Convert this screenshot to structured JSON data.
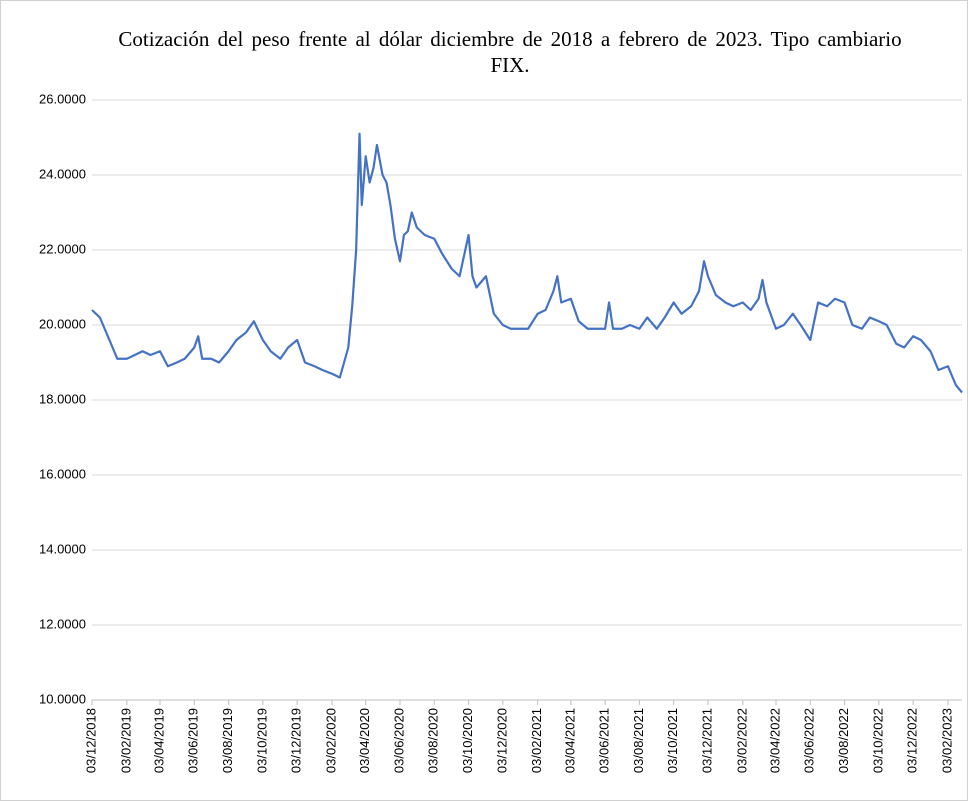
{
  "chart_data": {
    "type": "line",
    "title": "Cotización del peso frente al dólar diciembre de 2018 a febrero de 2023. Tipo cambiario FIX.",
    "color": "#4472c4",
    "grid": true,
    "ylim": [
      10,
      26
    ],
    "yticks": [
      {
        "value": 10,
        "label": "10.0000"
      },
      {
        "value": 12,
        "label": "12.0000"
      },
      {
        "value": 14,
        "label": "14.0000"
      },
      {
        "value": 16,
        "label": "16.0000"
      },
      {
        "value": 18,
        "label": "18.0000"
      },
      {
        "value": 20,
        "label": "20.0000"
      },
      {
        "value": 22,
        "label": "22.0000"
      },
      {
        "value": 24,
        "label": "24.0000"
      },
      {
        "value": 26,
        "label": "26.0000"
      }
    ],
    "xlim": [
      "03/12/2018",
      "28/02/2023"
    ],
    "xticks": [
      "03/12/2018",
      "03/02/2019",
      "03/04/2019",
      "03/06/2019",
      "03/08/2019",
      "03/10/2019",
      "03/12/2019",
      "03/02/2020",
      "03/04/2020",
      "03/06/2020",
      "03/08/2020",
      "03/10/2020",
      "03/12/2020",
      "03/02/2021",
      "03/04/2021",
      "03/06/2021",
      "03/08/2021",
      "03/10/2021",
      "03/12/2021",
      "03/02/2022",
      "03/04/2022",
      "03/06/2022",
      "03/08/2022",
      "03/10/2022",
      "03/12/2022",
      "03/02/2023"
    ],
    "x": [
      "03/12/2018",
      "17/12/2018",
      "03/01/2019",
      "17/01/2019",
      "03/02/2019",
      "17/02/2019",
      "03/03/2019",
      "17/03/2019",
      "03/04/2019",
      "17/04/2019",
      "03/05/2019",
      "17/05/2019",
      "03/06/2019",
      "10/06/2019",
      "17/06/2019",
      "03/07/2019",
      "17/07/2019",
      "03/08/2019",
      "17/08/2019",
      "03/09/2019",
      "17/09/2019",
      "03/10/2019",
      "17/10/2019",
      "03/11/2019",
      "17/11/2019",
      "03/12/2019",
      "17/12/2019",
      "03/01/2020",
      "17/01/2020",
      "03/02/2020",
      "17/02/2020",
      "03/03/2020",
      "10/03/2020",
      "17/03/2020",
      "23/03/2020",
      "27/03/2020",
      "03/04/2020",
      "10/04/2020",
      "17/04/2020",
      "23/04/2020",
      "03/05/2020",
      "10/05/2020",
      "17/05/2020",
      "25/05/2020",
      "03/06/2020",
      "10/06/2020",
      "17/06/2020",
      "24/06/2020",
      "03/07/2020",
      "17/07/2020",
      "03/08/2020",
      "17/08/2020",
      "03/09/2020",
      "17/09/2020",
      "03/10/2020",
      "10/10/2020",
      "17/10/2020",
      "03/11/2020",
      "17/11/2020",
      "03/12/2020",
      "17/12/2020",
      "03/01/2021",
      "17/01/2021",
      "03/02/2021",
      "17/02/2021",
      "03/03/2021",
      "10/03/2021",
      "17/03/2021",
      "03/04/2021",
      "17/04/2021",
      "03/05/2021",
      "17/05/2021",
      "03/06/2021",
      "10/06/2021",
      "17/06/2021",
      "03/07/2021",
      "17/07/2021",
      "03/08/2021",
      "17/08/2021",
      "03/09/2021",
      "17/09/2021",
      "03/10/2021",
      "17/10/2021",
      "03/11/2021",
      "17/11/2021",
      "26/11/2021",
      "03/12/2021",
      "17/12/2021",
      "03/01/2022",
      "17/01/2022",
      "03/02/2022",
      "17/02/2022",
      "03/03/2022",
      "10/03/2022",
      "17/03/2022",
      "03/04/2022",
      "17/04/2022",
      "03/05/2022",
      "17/05/2022",
      "03/06/2022",
      "17/06/2022",
      "03/07/2022",
      "17/07/2022",
      "03/08/2022",
      "17/08/2022",
      "03/09/2022",
      "17/09/2022",
      "03/10/2022",
      "17/10/2022",
      "03/11/2022",
      "17/11/2022",
      "03/12/2022",
      "17/12/2022",
      "03/01/2023",
      "17/01/2023",
      "03/02/2023",
      "17/02/2023",
      "28/02/2023"
    ],
    "values": [
      20.4,
      20.2,
      19.6,
      19.1,
      19.1,
      19.2,
      19.3,
      19.2,
      19.3,
      18.9,
      19.0,
      19.1,
      19.4,
      19.7,
      19.1,
      19.1,
      19.0,
      19.3,
      19.6,
      19.8,
      20.1,
      19.6,
      19.3,
      19.1,
      19.4,
      19.6,
      19.0,
      18.9,
      18.8,
      18.7,
      18.6,
      19.4,
      20.5,
      22.0,
      25.1,
      23.2,
      24.5,
      23.8,
      24.2,
      24.8,
      24.0,
      23.8,
      23.2,
      22.3,
      21.7,
      22.4,
      22.5,
      23.0,
      22.6,
      22.4,
      22.3,
      21.9,
      21.5,
      21.3,
      22.4,
      21.3,
      21.0,
      21.3,
      20.3,
      20.0,
      19.9,
      19.9,
      19.9,
      20.3,
      20.4,
      20.9,
      21.3,
      20.6,
      20.7,
      20.1,
      19.9,
      19.9,
      19.9,
      20.6,
      19.9,
      19.9,
      20.0,
      19.9,
      20.2,
      19.9,
      20.2,
      20.6,
      20.3,
      20.5,
      20.9,
      21.7,
      21.3,
      20.8,
      20.6,
      20.5,
      20.6,
      20.4,
      20.7,
      21.2,
      20.6,
      19.9,
      20.0,
      20.3,
      20.0,
      19.6,
      20.6,
      20.5,
      20.7,
      20.6,
      20.0,
      19.9,
      20.2,
      20.1,
      20.0,
      19.5,
      19.4,
      19.7,
      19.6,
      19.3,
      18.8,
      18.9,
      18.4,
      18.2
    ]
  }
}
